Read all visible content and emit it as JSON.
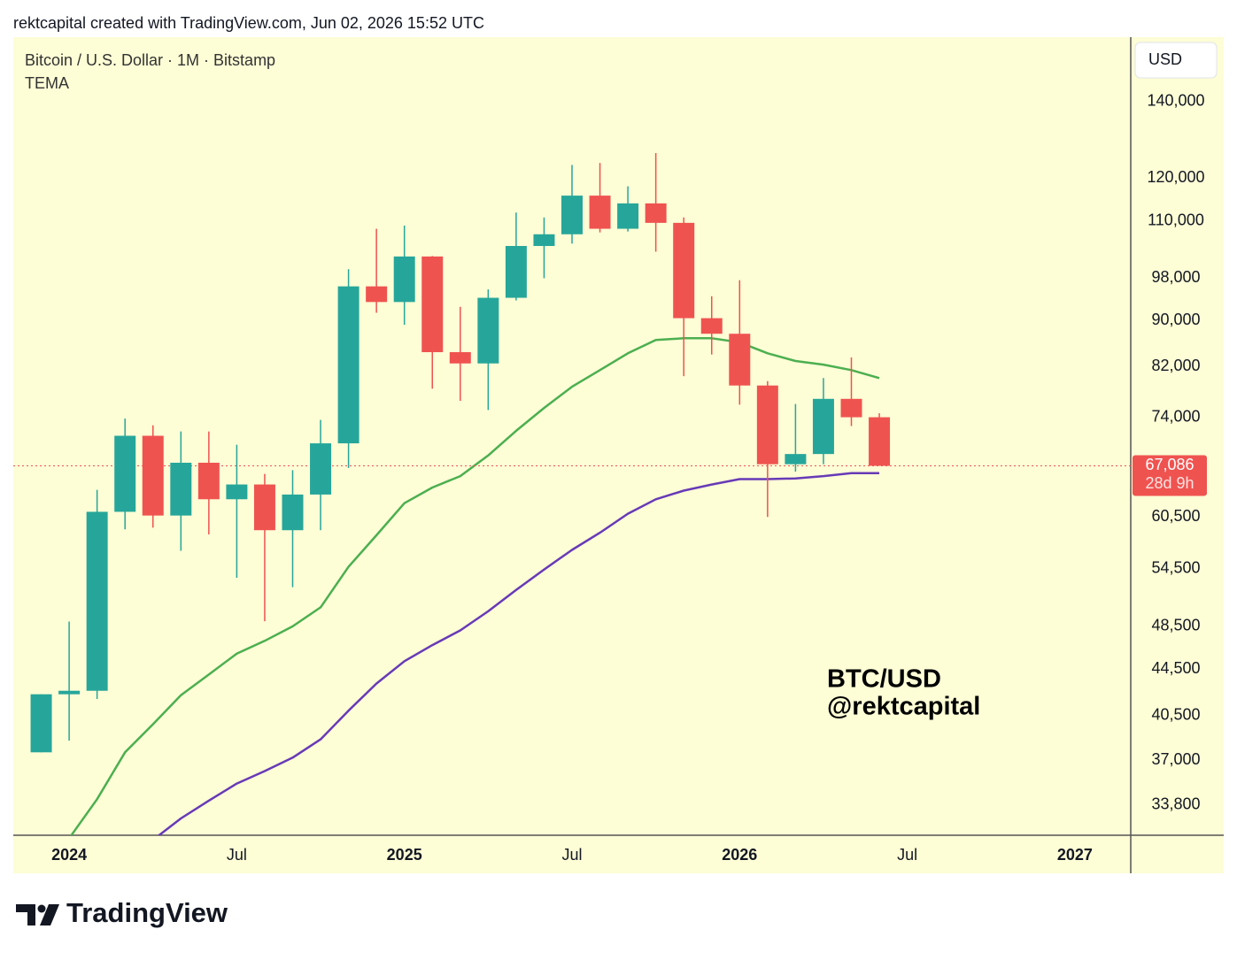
{
  "page": {
    "header": "rektcapital created with TradingView.com, Jun 02, 2026 15:52 UTC",
    "brand": "TradingView"
  },
  "chart_data": {
    "type": "candlestick",
    "title": "Bitcoin / U.S. Dollar · 1M · Bitstamp",
    "indicator": "TEMA",
    "currency": "USD",
    "watermark": [
      "BTC/USD",
      "@rektcapital"
    ],
    "x": [
      "2023-12",
      "2024-01",
      "2024-02",
      "2024-03",
      "2024-04",
      "2024-05",
      "2024-06",
      "2024-07",
      "2024-08",
      "2024-09",
      "2024-10",
      "2024-11",
      "2024-12",
      "2025-01",
      "2025-02",
      "2025-03",
      "2025-04",
      "2025-05",
      "2025-06",
      "2025-07",
      "2025-08",
      "2025-09",
      "2025-10",
      "2025-11",
      "2025-12",
      "2026-01",
      "2026-02",
      "2026-03",
      "2026-04",
      "2026-05",
      "2026-06"
    ],
    "open": [
      37600,
      42280,
      42580,
      61130,
      71280,
      60670,
      67500,
      62700,
      64600,
      58900,
      63300,
      70200,
      96400,
      93400,
      102400,
      84400,
      82500,
      94200,
      104600,
      107100,
      115800,
      108300,
      114000,
      109600,
      90400,
      87600,
      78900,
      67300,
      68700,
      76800,
      74000
    ],
    "high": [
      42280,
      48970,
      63900,
      73800,
      72800,
      71900,
      71900,
      70000,
      66000,
      66500,
      73600,
      99800,
      108300,
      109000,
      102500,
      92500,
      95800,
      111900,
      110800,
      123200,
      123700,
      118000,
      126200,
      110800,
      94500,
      97600,
      79600,
      76000,
      80100,
      83500,
      74600
    ],
    "low": [
      37600,
      38500,
      41880,
      59000,
      59200,
      56500,
      58400,
      53500,
      49000,
      52500,
      58900,
      66800,
      91400,
      89200,
      78400,
      76500,
      75100,
      93700,
      98000,
      105100,
      107500,
      107700,
      103400,
      80400,
      84000,
      75900,
      60500,
      66300,
      67300,
      72700,
      67086
    ],
    "close": [
      42280,
      42580,
      61130,
      71280,
      60670,
      67500,
      62700,
      64600,
      58900,
      63300,
      70200,
      96400,
      93400,
      102400,
      84400,
      82500,
      94200,
      104600,
      107100,
      115800,
      108300,
      114000,
      109600,
      90400,
      87600,
      78900,
      67300,
      68700,
      76800,
      74000,
      67086
    ],
    "up_color": "#26a69a",
    "down_color": "#ef5350",
    "series": [
      {
        "color": "#4caf50",
        "values": [
          null,
          31600,
          34200,
          37600,
          39800,
          42200,
          44000,
          45900,
          47100,
          48500,
          50400,
          54700,
          58300,
          62200,
          64200,
          65700,
          68500,
          72000,
          75400,
          78700,
          81400,
          84200,
          86500,
          86800,
          86800,
          86100,
          84200,
          82900,
          82300,
          81400,
          80100
        ]
      },
      {
        "color": "#673ab7",
        "values": [
          null,
          null,
          null,
          null,
          31500,
          32900,
          34100,
          35300,
          36200,
          37200,
          38600,
          40900,
          43200,
          45200,
          46700,
          48100,
          50000,
          52200,
          54400,
          56600,
          58600,
          60900,
          62700,
          63800,
          64600,
          65300,
          65300,
          65400,
          65700,
          66100,
          66100
        ]
      }
    ],
    "log_scale": true,
    "ylim": [
      31800,
      159500
    ],
    "yticks": [
      {
        "value": 33800,
        "label": "33,800"
      },
      {
        "value": 37000,
        "label": "37,000"
      },
      {
        "value": 40500,
        "label": "40,500"
      },
      {
        "value": 44500,
        "label": "44,500"
      },
      {
        "value": 48500,
        "label": "48,500"
      },
      {
        "value": 54500,
        "label": "54,500"
      },
      {
        "value": 60500,
        "label": "60,500"
      },
      {
        "value": 74000,
        "label": "74,000"
      },
      {
        "value": 82000,
        "label": "82,000"
      },
      {
        "value": 90000,
        "label": "90,000"
      },
      {
        "value": 98000,
        "label": "98,000"
      },
      {
        "value": 110000,
        "label": "110,000"
      },
      {
        "value": 120000,
        "label": "120,000"
      },
      {
        "value": 140000,
        "label": "140,000"
      }
    ],
    "xlim": [
      "2023-12",
      "2027-04"
    ],
    "xticks": [
      {
        "value": "2024-01",
        "label": "2024"
      },
      {
        "value": "2024-07",
        "label": "Jul"
      },
      {
        "value": "2025-01",
        "label": "2025"
      },
      {
        "value": "2025-07",
        "label": "Jul"
      },
      {
        "value": "2026-01",
        "label": "2026"
      },
      {
        "value": "2026-07",
        "label": "Jul"
      },
      {
        "value": "2027-01",
        "label": "2027"
      }
    ],
    "last_price": {
      "value": 67086,
      "label": "67,086"
    },
    "countdown": "28d 9h",
    "grid": false
  }
}
